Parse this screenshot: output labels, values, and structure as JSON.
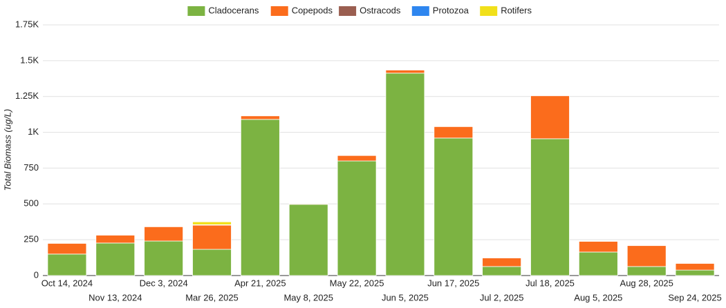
{
  "chart_data": {
    "type": "stacked_bar",
    "y_label": "Total Biomass (ug/L)",
    "categories": [
      "Oct 14, 2024",
      "Nov 13, 2024",
      "Dec 3, 2024",
      "Mar 26, 2025",
      "Apr 21, 2025",
      "May 8, 2025",
      "May 22, 2025",
      "Jun 5, 2025",
      "Jun 17, 2025",
      "Jul 2, 2025",
      "Jul 18, 2025",
      "Aug 5, 2025",
      "Aug 28, 2025",
      "Sep 24, 2025"
    ],
    "series": [
      {
        "name": "Cladocerans",
        "color": "#7cb342",
        "values": [
          150,
          227,
          241,
          183,
          1090,
          497,
          800,
          1413,
          960,
          63,
          955,
          164,
          63,
          38
        ]
      },
      {
        "name": "Copepods",
        "color": "#fb6c1c",
        "values": [
          75,
          55,
          100,
          169,
          25,
          5,
          38,
          22,
          80,
          60,
          300,
          75,
          146,
          47
        ]
      },
      {
        "name": "Ostracods",
        "color": "#9a5e50",
        "values": [
          3,
          2,
          1,
          3,
          3,
          1,
          2,
          2,
          2,
          2,
          4,
          2,
          2,
          1
        ]
      },
      {
        "name": "Protozoa",
        "color": "#2e86ef",
        "values": [
          0,
          0,
          0,
          0,
          0,
          0,
          0,
          0,
          0,
          0,
          0,
          0,
          0,
          0
        ]
      },
      {
        "name": "Rotifers",
        "color": "#f1e01a",
        "values": [
          0,
          0,
          0,
          20,
          0,
          0,
          0,
          0,
          0,
          0,
          0,
          0,
          0,
          0
        ]
      }
    ],
    "ylim": [
      0,
      1750
    ],
    "yticks": [
      0,
      250,
      500,
      750,
      {
        "value": 1000,
        "label": "1K"
      },
      {
        "value": 1250,
        "label": "1.25K"
      },
      {
        "value": 1500,
        "label": "1.5K"
      },
      {
        "value": 1750,
        "label": "1.75K"
      }
    ],
    "grid": true,
    "legend": "top"
  }
}
